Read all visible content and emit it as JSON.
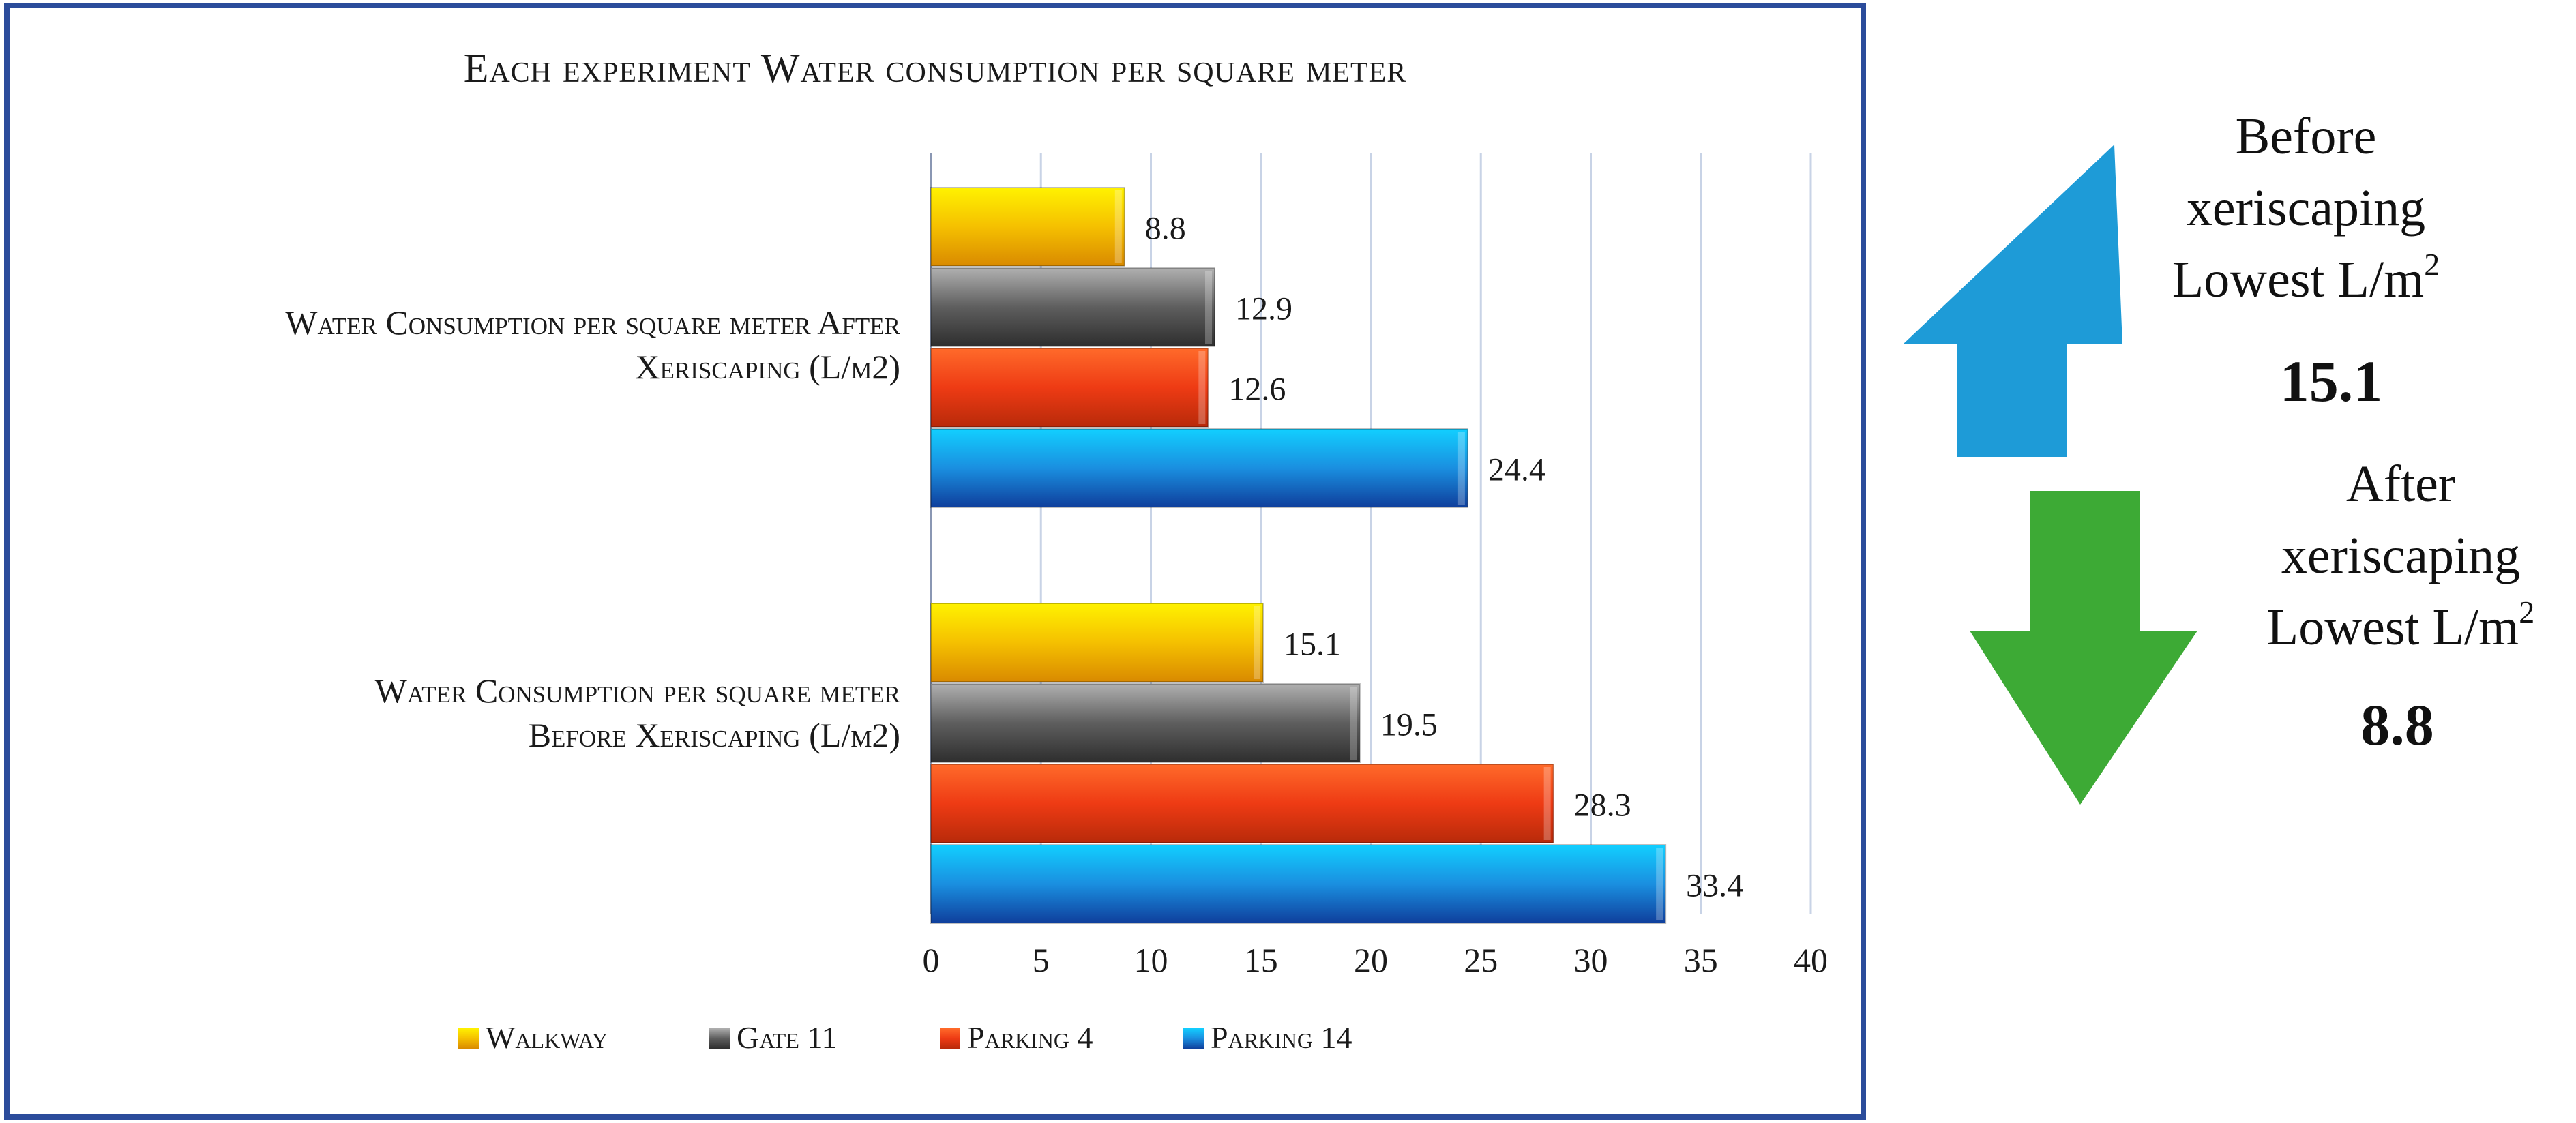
{
  "chart_data": {
    "type": "bar",
    "orientation": "horizontal",
    "title": "Each experiment Water consumption per square meter",
    "categories": [
      [
        "Water Consumption per square meter After",
        "Xeriscaping (L/m2)"
      ],
      [
        "Water Consumption per square meter",
        "Before  Xeriscaping (L/m2)"
      ]
    ],
    "series": [
      {
        "name": "Walkway",
        "color": "#F2B705",
        "values": [
          8.8,
          15.1
        ]
      },
      {
        "name": "Gate 11",
        "color": "#555555",
        "values": [
          12.9,
          19.5
        ]
      },
      {
        "name": "Parking 4",
        "color": "#E8431A",
        "values": [
          12.6,
          28.3
        ]
      },
      {
        "name": "Parking 14",
        "color": "#1A7FD4",
        "values": [
          24.4,
          33.4
        ]
      }
    ],
    "xlim": [
      0,
      40
    ],
    "xticks": [
      0,
      5,
      10,
      15,
      20,
      25,
      30,
      35,
      40
    ],
    "grid": true,
    "legend_position": "bottom"
  },
  "annotations": {
    "before": {
      "line1": "Before",
      "line2": "xeriscaping",
      "line3": "Lowest L/m",
      "sup": "2",
      "value": "15.1",
      "arrow_color": "#1E9BD7",
      "arrow_direction": "up"
    },
    "after": {
      "line1": "After",
      "line2": "xeriscaping",
      "line3": "Lowest L/m",
      "sup": "2",
      "value": "8.8",
      "arrow_color": "#3DAA35",
      "arrow_direction": "down"
    }
  },
  "colors": {
    "frame": "#2B4C9B",
    "grid": "#C8D3E6"
  }
}
